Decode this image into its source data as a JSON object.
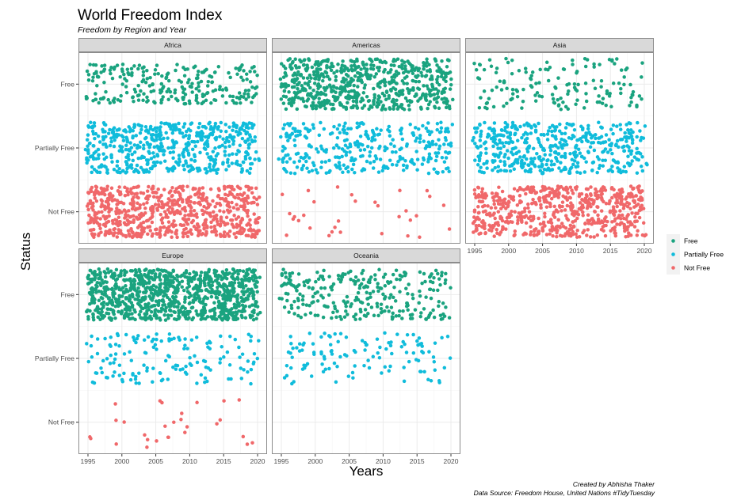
{
  "chart_data": {
    "type": "scatter",
    "subtype": "jitter-strip, faceted by region",
    "title": "World Freedom Index",
    "subtitle": "Freedom by Region and Year",
    "xlabel": "Years",
    "ylabel": "Status",
    "caption": [
      "Created by Abhisha Thaker",
      "Data Source: Freedom House, United Nations #TidyTuesday"
    ],
    "x_range": [
      1995,
      2020
    ],
    "x_ticks": [
      1995,
      2000,
      2005,
      2010,
      2015,
      2020
    ],
    "y_categories": [
      "Free",
      "Partially Free",
      "Not Free"
    ],
    "legend": {
      "position": "right",
      "entries": [
        {
          "label": "Free",
          "color": "#1aa37f"
        },
        {
          "label": "Partially Free",
          "color": "#10bcdb"
        },
        {
          "label": "Not Free",
          "color": "#f0686a"
        }
      ]
    },
    "facets": [
      {
        "region": "Africa",
        "counts": {
          "Free": 250,
          "Partially Free": 550,
          "Not Free": 700
        },
        "spread": {
          "Free": 0.62,
          "Partially Free": 0.8,
          "Not Free": 0.8
        }
      },
      {
        "region": "Americas",
        "counts": {
          "Free": 650,
          "Partially Free": 320,
          "Not Free": 32
        },
        "spread": {
          "Free": 0.8,
          "Partially Free": 0.8,
          "Not Free": 0.8
        }
      },
      {
        "region": "Asia",
        "counts": {
          "Free": 150,
          "Partially Free": 480,
          "Not Free": 620
        },
        "spread": {
          "Free": 0.8,
          "Partially Free": 0.8,
          "Not Free": 0.8
        }
      },
      {
        "region": "Europe",
        "counts": {
          "Free": 1000,
          "Partially Free": 150,
          "Not Free": 28
        },
        "spread": {
          "Free": 0.8,
          "Partially Free": 0.8,
          "Not Free": 0.8
        }
      },
      {
        "region": "Oceania",
        "counts": {
          "Free": 280,
          "Partially Free": 120,
          "Not Free": 0
        },
        "spread": {
          "Free": 0.8,
          "Partially Free": 0.8,
          "Not Free": 0.8
        }
      }
    ]
  },
  "colors": {
    "panel_border": "#8c8c8c",
    "strip_fill": "#d9d9d9",
    "grid_major": "#ebebeb",
    "grid_minor": "#f5f5f5"
  }
}
